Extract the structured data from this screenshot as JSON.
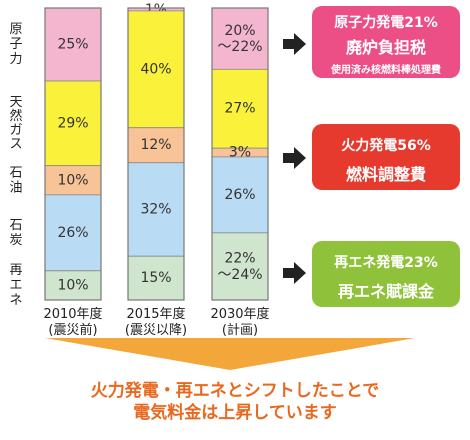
{
  "chart_data": {
    "type": "bar",
    "stacked": true,
    "categories": [
      {
        "label": "2010年度",
        "sublabel": "(震災前)"
      },
      {
        "label": "2015年度",
        "sublabel": "(震災以降)"
      },
      {
        "label": "2030年度",
        "sublabel": "(計画)"
      }
    ],
    "series": [
      {
        "name": "原子力",
        "color": "#f4b6cf",
        "values": [
          25,
          1,
          21
        ],
        "labels": [
          "25%",
          "1%",
          "20%\n〜22%"
        ]
      },
      {
        "name": "天然ガス",
        "color": "#faf23a",
        "values": [
          29,
          40,
          27
        ],
        "labels": [
          "29%",
          "40%",
          "27%"
        ]
      },
      {
        "name": "石油",
        "color": "#f8c397",
        "values": [
          10,
          12,
          3
        ],
        "labels": [
          "10%",
          "12%",
          "3%"
        ]
      },
      {
        "name": "石炭",
        "color": "#b9dcf4",
        "values": [
          26,
          32,
          26
        ],
        "labels": [
          "26%",
          "32%",
          "26%"
        ]
      },
      {
        "name": "再エネ",
        "color": "#cfe5cd",
        "values": [
          10,
          15,
          23
        ],
        "labels": [
          "10%",
          "15%",
          "22%\n〜24%"
        ]
      }
    ],
    "ylim": [
      0,
      100
    ],
    "grid": false,
    "legend": "left"
  },
  "callouts": [
    {
      "line1": "原子力発電21%",
      "line2": "廃炉負担税",
      "line3": "使用済み核燃料棒処理費",
      "color": "#ec4f86"
    },
    {
      "line1": "火力発電56%",
      "line2": "燃料調整費",
      "color": "#e63a2f"
    },
    {
      "line1": "再エネ発電23%",
      "line2": "再エネ賦課金",
      "color": "#8fc23a"
    }
  ],
  "conclusion": {
    "line1": "火力発電・再エネとシフトしたことで",
    "line2": "電気料金は上昇しています"
  },
  "colors": {
    "arrow": "#222222",
    "down_arrow": "#f3a63a",
    "conclusion_text": "#e9681e"
  }
}
